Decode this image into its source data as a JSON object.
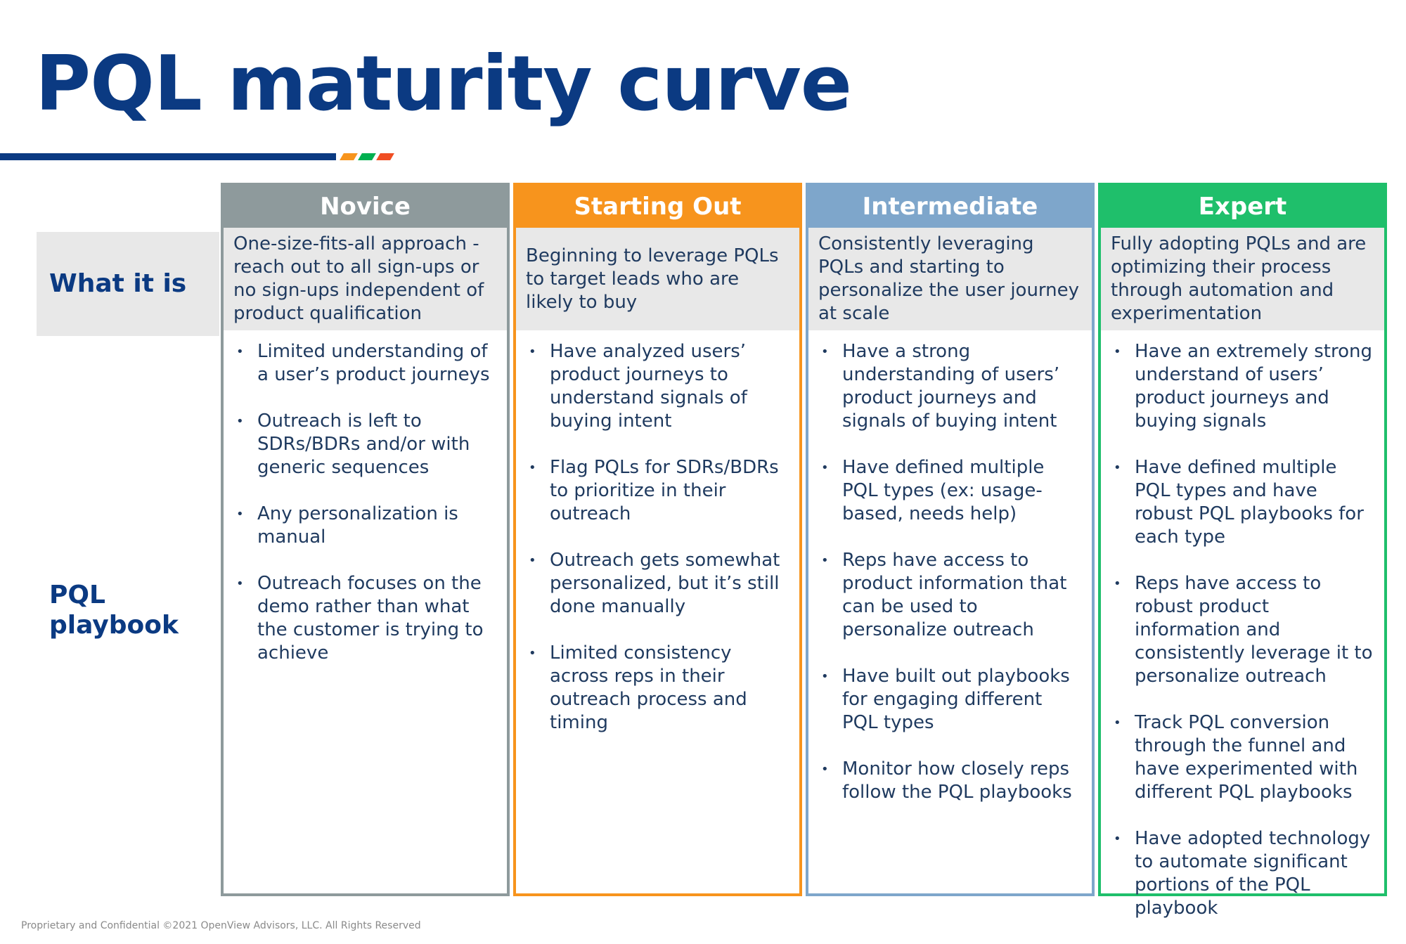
{
  "title": "PQL maturity curve",
  "accent_colors": [
    "#f7941d",
    "#00b050",
    "#f04e23"
  ],
  "row_labels": {
    "what_it_is": "What it is",
    "playbook": "PQL playbook"
  },
  "columns": [
    {
      "name": "Novice",
      "color": "#8e9a9c",
      "what": "One-size-fits-all approach - reach out to all sign-ups or no sign-ups independent of product qualification",
      "playbook": [
        "Limited understanding of a user’s product journeys",
        "Outreach is left to SDRs/BDRs and/or with generic sequences",
        "Any personalization is manual",
        "Outreach focuses on the demo rather than what the customer is trying to achieve"
      ]
    },
    {
      "name": "Starting Out",
      "color": "#f7941d",
      "what": "Beginning to leverage PQLs to target leads who are likely to buy",
      "playbook": [
        "Have analyzed users’ product journeys to understand signals of buying intent",
        "Flag PQLs for SDRs/BDRs to prioritize in their outreach",
        "Outreach gets somewhat personalized, but it’s still done manually",
        "Limited consistency across reps in their outreach process and timing"
      ]
    },
    {
      "name": "Intermediate",
      "color": "#7ea6cb",
      "what": "Consistently leveraging PQLs and starting to personalize the user journey at scale",
      "playbook": [
        "Have a strong understanding of users’ product journeys and signals of buying intent",
        "Have defined multiple PQL types (ex: usage-based, needs help)",
        "Reps have access to product information that can be used to personalize outreach",
        "Have built out playbooks for engaging different PQL types",
        "Monitor how closely reps follow the PQL playbooks"
      ]
    },
    {
      "name": "Expert",
      "color": "#1fbf6b",
      "what": "Fully adopting PQLs and are optimizing their process through automation and experimentation",
      "playbook": [
        "Have an extremely strong understand of users’ product journeys and buying signals",
        "Have defined multiple PQL types and have robust PQL playbooks for each type",
        "Reps have access to robust product information and consistently leverage it to personalize outreach",
        "Track PQL conversion through the funnel and have experimented with different PQL playbooks",
        "Have adopted technology to automate significant portions of the PQL playbook"
      ]
    }
  ],
  "footer": "Proprietary and Confidential ©2021 OpenView Advisors, LLC. All Rights Reserved"
}
